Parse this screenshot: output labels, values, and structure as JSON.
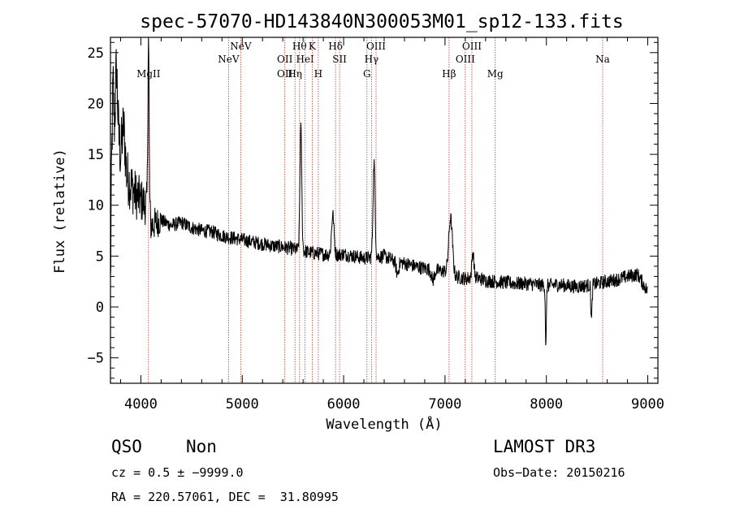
{
  "chart_data": {
    "type": "line",
    "title": "spec-57070-HD143840N300053M01_sp12-133.fits",
    "xlabel": "Wavelength (Å)",
    "ylabel": "Flux (relative)",
    "xlim": [
      3700,
      9100
    ],
    "ylim": [
      -7.5,
      26.5
    ],
    "xticks": [
      4000,
      5000,
      6000,
      7000,
      8000,
      9000
    ],
    "xtick_labels": [
      "4000",
      "5000",
      "6000",
      "7000",
      "8000",
      "9000"
    ],
    "yticks": [
      -5,
      0,
      5,
      10,
      15,
      20,
      25
    ],
    "ytick_labels": [
      "−5",
      "0",
      "5",
      "10",
      "15",
      "20",
      "25"
    ],
    "series": [
      {
        "name": "flux",
        "anchors": [
          [
            3700,
            2
          ],
          [
            3712,
            14
          ],
          [
            3725,
            22
          ],
          [
            3740,
            18
          ],
          [
            3760,
            24
          ],
          [
            3780,
            17
          ],
          [
            3800,
            15
          ],
          [
            3830,
            18
          ],
          [
            3860,
            13
          ],
          [
            3900,
            12
          ],
          [
            3950,
            11
          ],
          [
            4000,
            10.5
          ],
          [
            4050,
            10
          ],
          [
            4075,
            10.5
          ],
          [
            4100,
            8
          ],
          [
            4200,
            8.5
          ],
          [
            4300,
            8
          ],
          [
            4400,
            8.3
          ],
          [
            4500,
            7.8
          ],
          [
            4600,
            7.5
          ],
          [
            4700,
            7.4
          ],
          [
            4800,
            7.0
          ],
          [
            4900,
            6.8
          ],
          [
            5000,
            6.6
          ],
          [
            5100,
            6.4
          ],
          [
            5200,
            6.2
          ],
          [
            5300,
            6.0
          ],
          [
            5400,
            5.9
          ],
          [
            5500,
            5.7
          ],
          [
            5600,
            5.5
          ],
          [
            5700,
            5.3
          ],
          [
            5800,
            5.2
          ],
          [
            5900,
            5.1
          ],
          [
            6000,
            5.2
          ],
          [
            6100,
            5.0
          ],
          [
            6200,
            4.8
          ],
          [
            6300,
            4.9
          ],
          [
            6400,
            5.0
          ],
          [
            6500,
            4.5
          ],
          [
            6600,
            4.3
          ],
          [
            6700,
            4.0
          ],
          [
            6800,
            3.8
          ],
          [
            6900,
            3.6
          ],
          [
            7000,
            3.5
          ],
          [
            7100,
            3.0
          ],
          [
            7200,
            2.8
          ],
          [
            7300,
            2.9
          ],
          [
            7400,
            2.6
          ],
          [
            7500,
            2.5
          ],
          [
            7600,
            2.4
          ],
          [
            7700,
            2.3
          ],
          [
            7800,
            2.3
          ],
          [
            7900,
            2.2
          ],
          [
            8000,
            2.1
          ],
          [
            8100,
            2.2
          ],
          [
            8200,
            2.1
          ],
          [
            8300,
            2.0
          ],
          [
            8400,
            2.1
          ],
          [
            8500,
            2.3
          ],
          [
            8600,
            2.5
          ],
          [
            8700,
            2.7
          ],
          [
            8800,
            3.0
          ],
          [
            8900,
            3.2
          ],
          [
            9000,
            1.5
          ]
        ],
        "features": [
          {
            "center": 4075,
            "width": 6,
            "amp": 16
          },
          {
            "center": 5578,
            "width": 9,
            "amp": 12
          },
          {
            "center": 5893,
            "width": 12,
            "amp": 4
          },
          {
            "center": 6300,
            "width": 10,
            "amp": 9.3
          },
          {
            "center": 7055,
            "width": 18,
            "amp": 5.5
          },
          {
            "center": 7275,
            "width": 10,
            "amp": 2.5
          },
          {
            "center": 7995,
            "width": 5,
            "amp": -6
          },
          {
            "center": 8445,
            "width": 6,
            "amp": -3.5
          },
          {
            "center": 6530,
            "width": 12,
            "amp": -1.2
          },
          {
            "center": 6880,
            "width": 14,
            "amp": -1.0
          }
        ],
        "noise": {
          "amplitude_low": 3.5,
          "amplitude_high": 0.7,
          "transition": 4200
        }
      }
    ],
    "lines": [
      {
        "label": "MgII",
        "x": 4075,
        "row": 3
      },
      {
        "label": "NeV",
        "x": 4865,
        "row": 2
      },
      {
        "label": "NeV",
        "x": 4985,
        "row": 1
      },
      {
        "label": "OII",
        "x": 5420,
        "row": 3
      },
      {
        "label": "OII",
        "x": 5420,
        "row": 2
      },
      {
        "label": "Hη",
        "x": 5520,
        "row": 3
      },
      {
        "label": "Hθ",
        "x": 5565,
        "row": 1
      },
      {
        "label": "HeI",
        "x": 5620,
        "row": 2
      },
      {
        "label": "K",
        "x": 5690,
        "row": 1
      },
      {
        "label": "H",
        "x": 5750,
        "row": 3
      },
      {
        "label": "Hδ",
        "x": 5920,
        "row": 1
      },
      {
        "label": "SII",
        "x": 5960,
        "row": 2
      },
      {
        "label": "G",
        "x": 6230,
        "row": 3
      },
      {
        "label": "Hγ",
        "x": 6275,
        "row": 2
      },
      {
        "label": "OIII",
        "x": 6320,
        "row": 1
      },
      {
        "label": "Hβ",
        "x": 7040,
        "row": 3
      },
      {
        "label": "OIII",
        "x": 7200,
        "row": 2
      },
      {
        "label": "OIII",
        "x": 7265,
        "row": 1
      },
      {
        "label": "Mg",
        "x": 7495,
        "row": 3
      },
      {
        "label": "Na",
        "x": 8555,
        "row": 2
      }
    ]
  },
  "footer": {
    "class_label": "QSO",
    "subclass_label": "Non",
    "survey": "LAMOST DR3",
    "cz_text": "cz = 0.5 ± −9999.0",
    "obs_date_text": "Obs−Date: 20150216",
    "radec_text": "RA = 220.57061, DEC =  31.80995"
  },
  "colors": {
    "axis": "#000000",
    "spectrum": "#000000",
    "line_marker": "#c0392b"
  }
}
